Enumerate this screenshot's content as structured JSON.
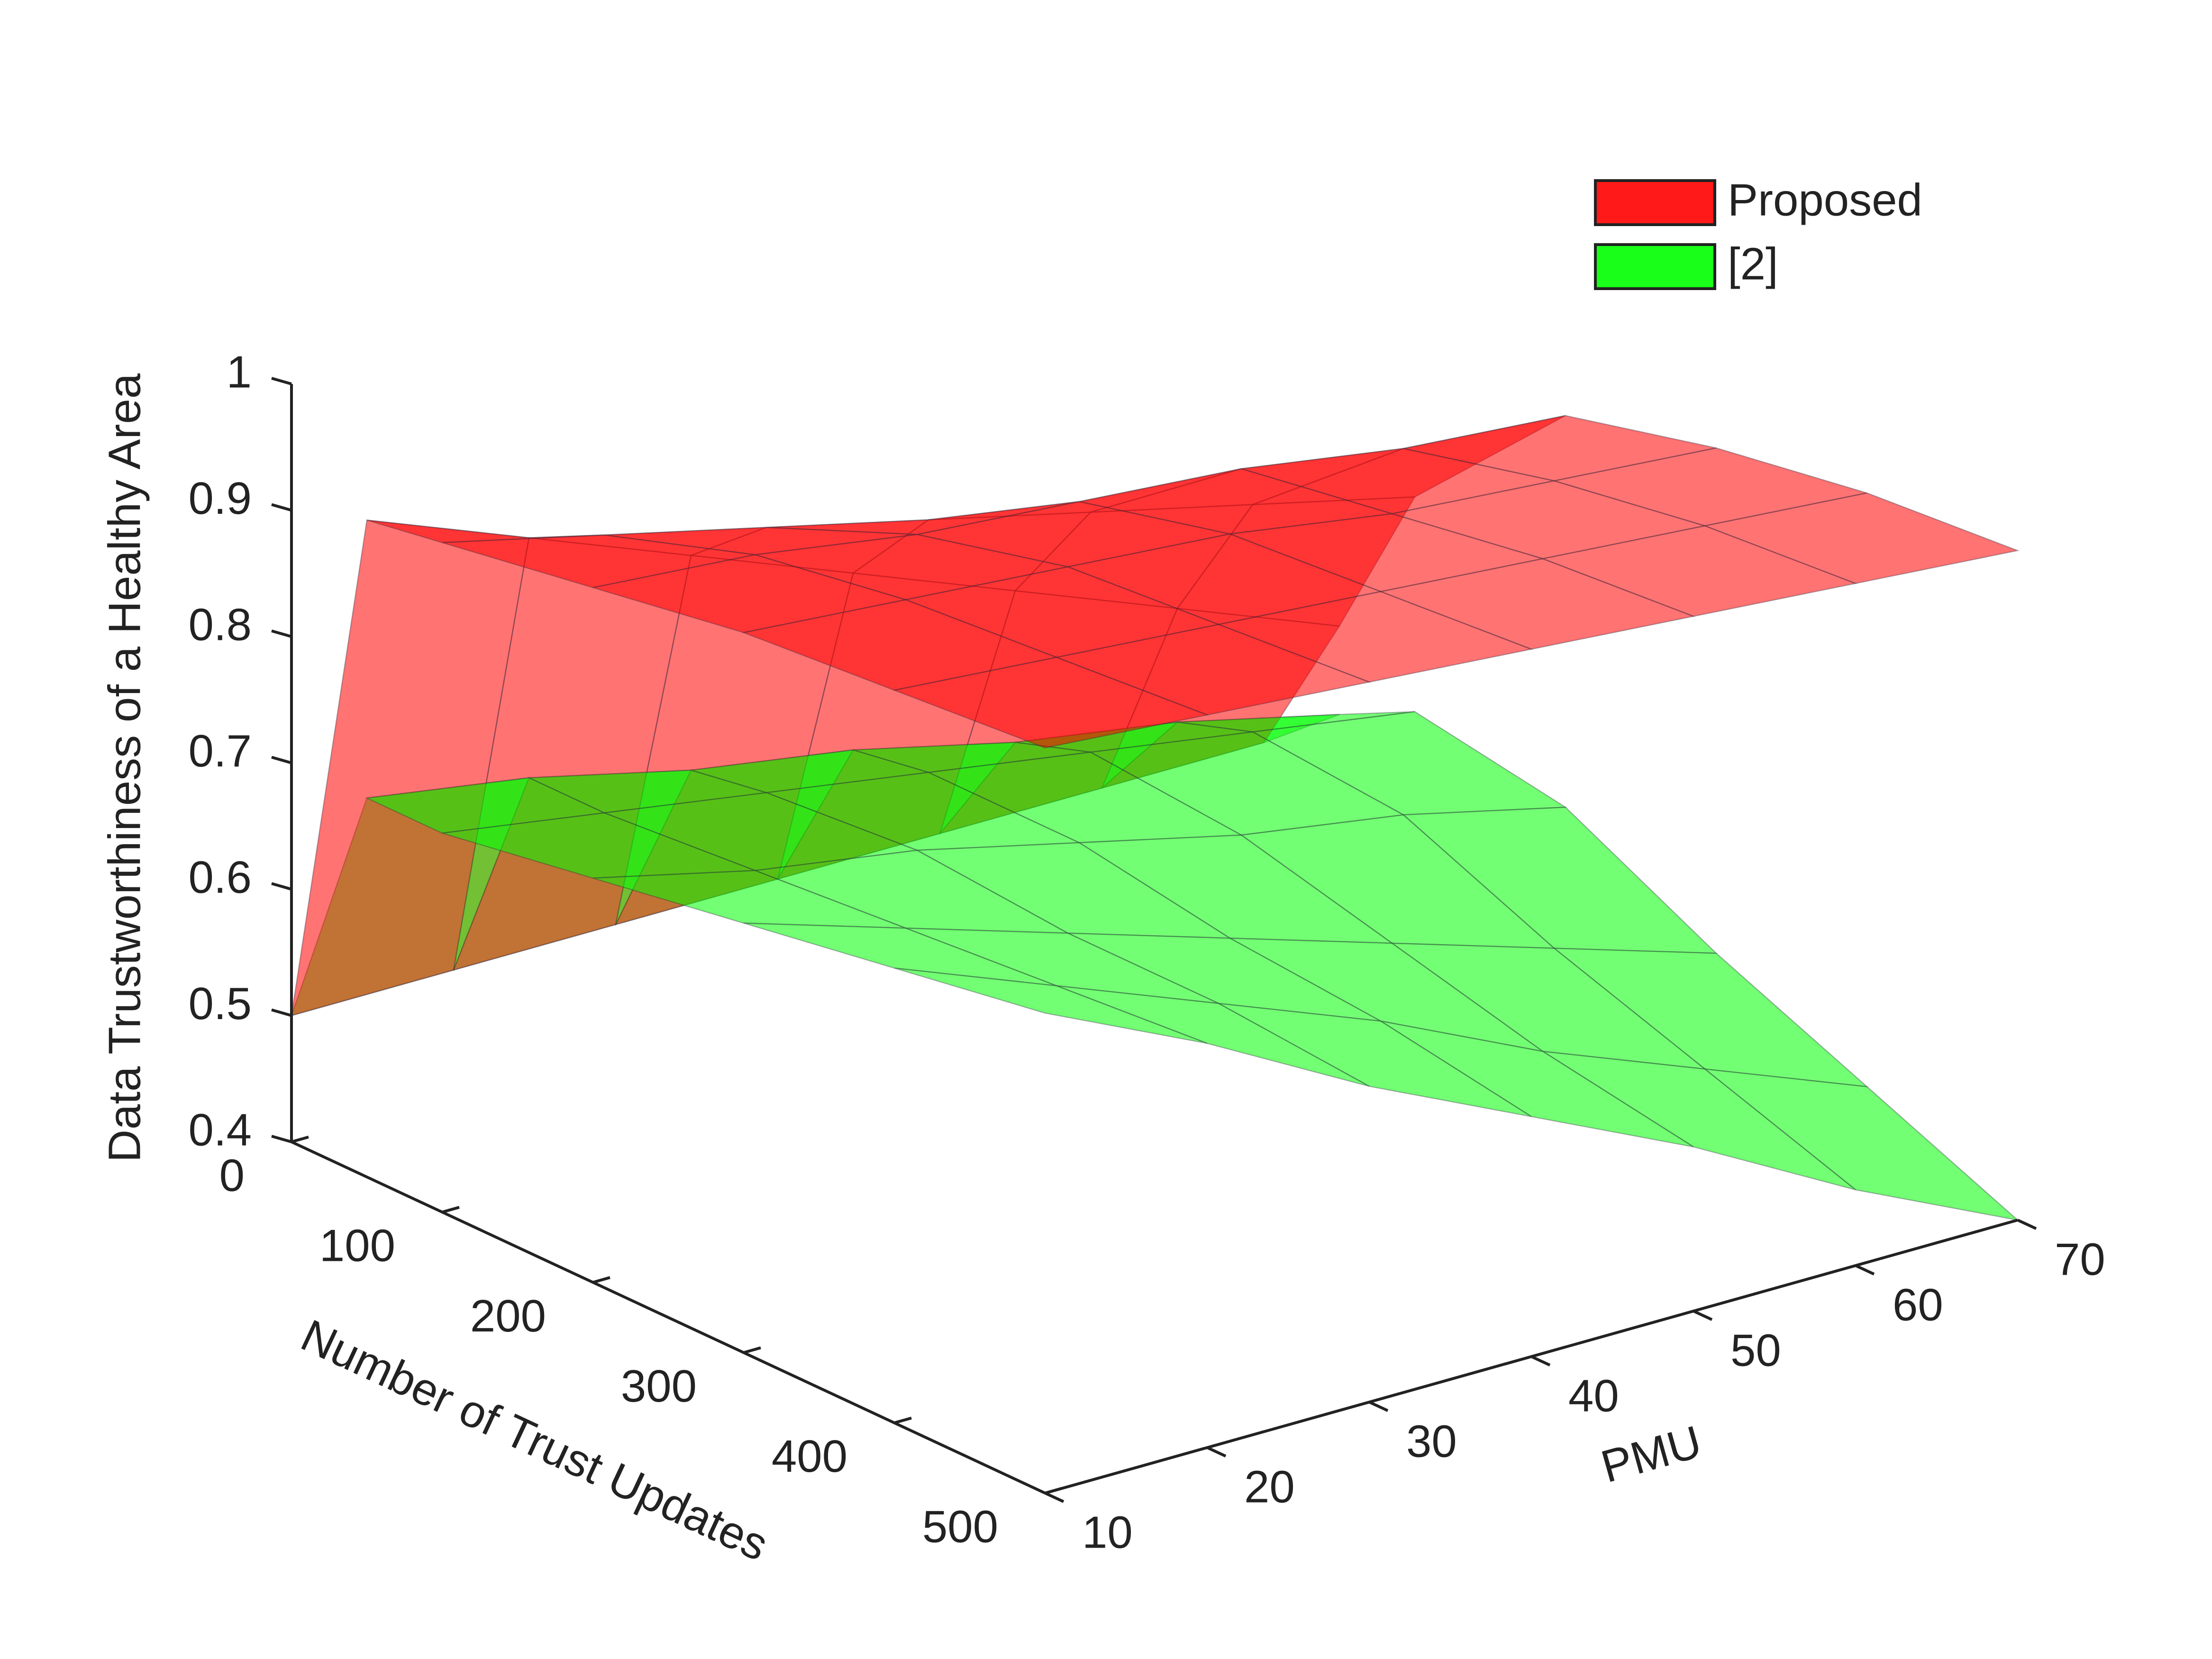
{
  "chart_data": {
    "type": "surface3d",
    "xlabel": "PMU",
    "ylabel": "Number of Trust Updates",
    "zlabel": "Data Trustworthiness of a Healthy Area",
    "x": [
      10,
      20,
      30,
      40,
      50,
      60,
      70
    ],
    "y": [
      0,
      50,
      100,
      200,
      300,
      400,
      500
    ],
    "xlim": [
      10,
      70
    ],
    "ylim": [
      0,
      500
    ],
    "zlim": [
      0.4,
      1
    ],
    "xticks": [
      10,
      20,
      30,
      40,
      50,
      60,
      70
    ],
    "yticks": [
      0,
      100,
      200,
      300,
      400,
      500
    ],
    "zticks": [
      0.4,
      0.5,
      0.6,
      0.7,
      0.8,
      0.9,
      1
    ],
    "legend": "top-right",
    "series": [
      {
        "name": "Proposed",
        "color": "#ff0000",
        "values": [
          [
            0.5,
            0.5,
            0.5,
            0.5,
            0.5,
            0.5,
            0.5
          ],
          [
            0.92,
            0.87,
            0.82,
            0.77,
            0.72,
            0.67,
            0.62
          ],
          [
            0.93,
            0.9,
            0.87,
            0.84,
            0.81,
            0.78,
            0.75
          ],
          [
            0.95,
            0.94,
            0.92,
            0.91,
            0.9,
            0.88,
            0.87
          ],
          [
            0.97,
            0.96,
            0.95,
            0.94,
            0.92,
            0.91,
            0.9
          ],
          [
            0.98,
            0.97,
            0.96,
            0.95,
            0.94,
            0.93,
            0.92
          ],
          [
            0.99,
            0.98,
            0.97,
            0.96,
            0.95,
            0.94,
            0.93
          ]
        ]
      },
      {
        "name": "[2]",
        "color": "#00ff00",
        "values": [
          [
            0.5,
            0.5,
            0.5,
            0.5,
            0.5,
            0.5,
            0.5
          ],
          [
            0.7,
            0.68,
            0.65,
            0.63,
            0.6,
            0.58,
            0.55
          ],
          [
            0.7,
            0.68,
            0.66,
            0.64,
            0.62,
            0.6,
            0.58
          ],
          [
            0.72,
            0.69,
            0.67,
            0.64,
            0.61,
            0.59,
            0.56
          ],
          [
            0.74,
            0.7,
            0.66,
            0.62,
            0.58,
            0.54,
            0.5
          ],
          [
            0.76,
            0.71,
            0.66,
            0.61,
            0.55,
            0.5,
            0.45
          ],
          [
            0.78,
            0.72,
            0.65,
            0.59,
            0.53,
            0.46,
            0.4
          ]
        ]
      }
    ]
  }
}
